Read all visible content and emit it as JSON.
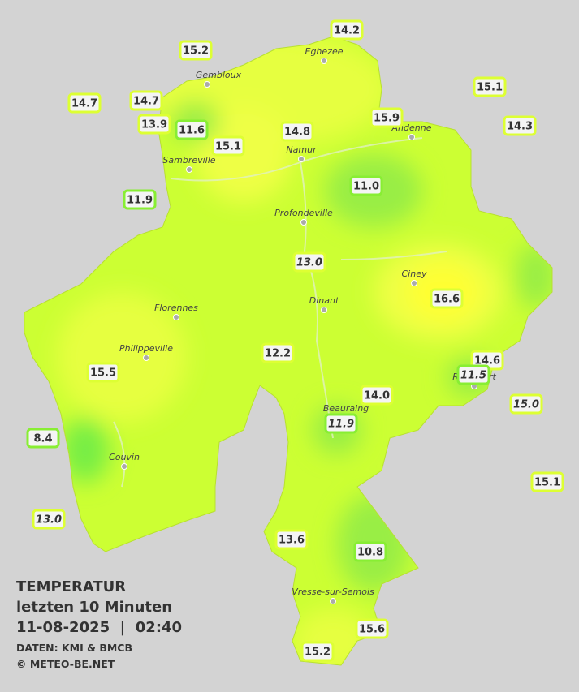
{
  "title": [
    "TEMPERATUR",
    "letzten 10 Minuten",
    "11-08-2025  |  02:40"
  ],
  "credits": [
    "DATEN: KMI & BMCB",
    "© METEO-BE.NET"
  ],
  "cities": [
    {
      "name": "Eghezee"
    },
    {
      "name": "Gembloux"
    },
    {
      "name": "Andenne"
    },
    {
      "name": "Namur"
    },
    {
      "name": "Sambreville"
    },
    {
      "name": "Profondeville"
    },
    {
      "name": "Ciney"
    },
    {
      "name": "Dinant"
    },
    {
      "name": "Florennes"
    },
    {
      "name": "Philippeville"
    },
    {
      "name": "Rochefort"
    },
    {
      "name": "Beauraing"
    },
    {
      "name": "Couvin"
    },
    {
      "name": "Vresse-sur-Semois"
    }
  ],
  "stations": [
    {
      "label": "14.2",
      "italic": false
    },
    {
      "label": "15.2",
      "italic": false
    },
    {
      "label": "15.1",
      "italic": false
    },
    {
      "label": "14.7",
      "italic": false
    },
    {
      "label": "14.7",
      "italic": false
    },
    {
      "label": "13.9",
      "italic": false
    },
    {
      "label": "11.6",
      "italic": false
    },
    {
      "label": "14.8",
      "italic": false
    },
    {
      "label": "15.1",
      "italic": false
    },
    {
      "label": "15.9",
      "italic": false
    },
    {
      "label": "14.3",
      "italic": false
    },
    {
      "label": "11.9",
      "italic": false
    },
    {
      "label": "11.0",
      "italic": false
    },
    {
      "label": "13.0",
      "italic": true
    },
    {
      "label": "16.6",
      "italic": false
    },
    {
      "label": "12.2",
      "italic": false
    },
    {
      "label": "14.6",
      "italic": false
    },
    {
      "label": "11.5",
      "italic": true
    },
    {
      "label": "15.5",
      "italic": false
    },
    {
      "label": "14.0",
      "italic": false
    },
    {
      "label": "15.0",
      "italic": true
    },
    {
      "label": "8.4",
      "italic": false
    },
    {
      "label": "11.9",
      "italic": true
    },
    {
      "label": "15.1",
      "italic": false
    },
    {
      "label": "13.0",
      "italic": true
    },
    {
      "label": "13.6",
      "italic": false
    },
    {
      "label": "10.8",
      "italic": false
    },
    {
      "label": "15.6",
      "italic": false
    },
    {
      "label": "15.2",
      "italic": false
    }
  ]
}
